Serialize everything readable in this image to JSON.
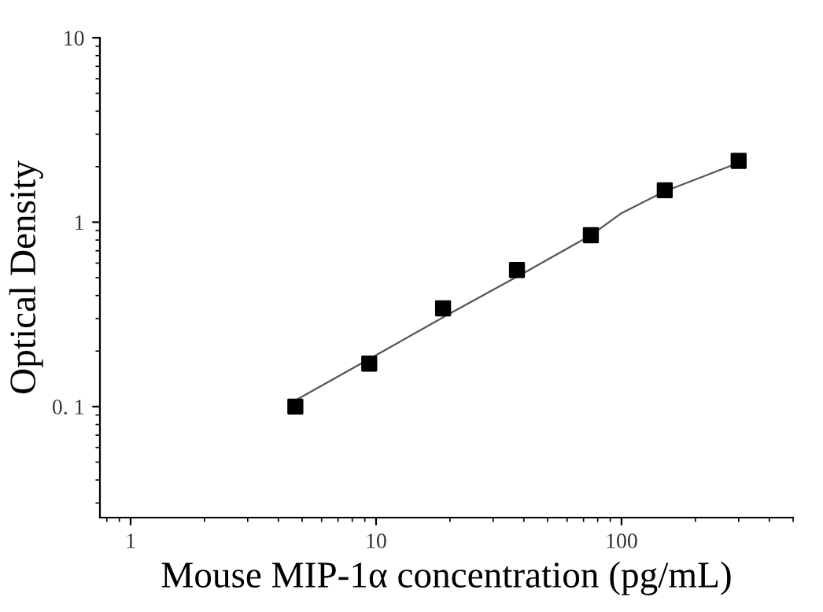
{
  "chart_data": {
    "type": "scatter",
    "xlabel": "Mouse MIP-1α concentration (pg/mL)",
    "ylabel": "Optical Density",
    "log": "xy",
    "xlim": [
      0.75,
      500
    ],
    "ylim": [
      0.025,
      10
    ],
    "xticks": [
      1,
      10,
      100
    ],
    "yticks": [
      {
        "value": 0.1,
        "label": "0. 1"
      },
      1,
      10
    ],
    "grid": false,
    "series": [
      {
        "marker": "square",
        "color": "#000000",
        "x": [
          4.69,
          9.38,
          18.75,
          37.5,
          75,
          150,
          300
        ],
        "values": [
          0.1,
          0.171,
          0.341,
          0.55,
          0.85,
          1.49,
          2.15
        ]
      },
      {
        "type": "line",
        "marker": "none",
        "color": "#555555",
        "line_style": "solid",
        "x": [
          4.69,
          10,
          20,
          40,
          75,
          100,
          150,
          300
        ],
        "values": [
          0.108,
          0.19,
          0.32,
          0.53,
          0.85,
          1.12,
          1.47,
          2.1
        ]
      }
    ]
  }
}
